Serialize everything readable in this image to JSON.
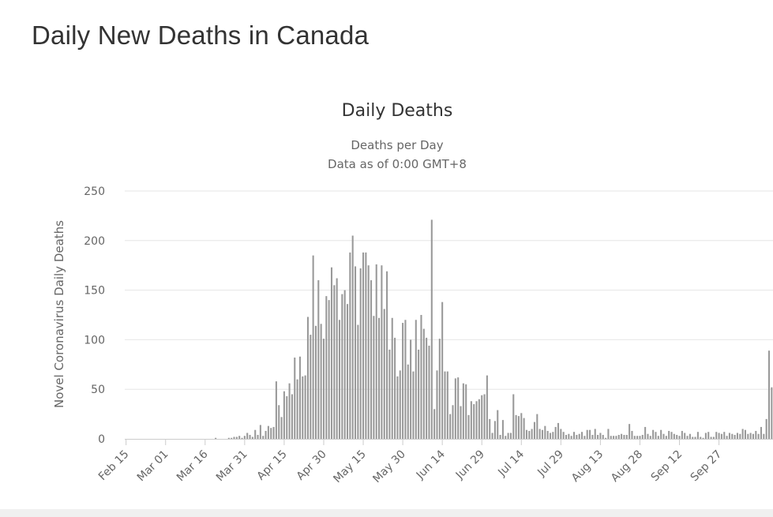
{
  "page": {
    "heading": "Daily New Deaths in Canada"
  },
  "chart_data": {
    "type": "bar",
    "title": "Daily Deaths",
    "subtitle_line1": "Deaths per Day",
    "subtitle_line2": "Data as of 0:00 GMT+8",
    "ylabel": "Novel Coronavirus Daily Deaths",
    "xlabel": "",
    "ylim": [
      0,
      250
    ],
    "yticks": [
      "0",
      "50",
      "100",
      "150",
      "200",
      "250"
    ],
    "grid": true,
    "legend": "none",
    "start_date": "2020-02-15",
    "date_tick_labels": [
      "Feb 15",
      "Mar 01",
      "Mar 16",
      "Mar 31",
      "Apr 15",
      "Apr 30",
      "May 15",
      "May 30",
      "Jun 14",
      "Jun 29",
      "Jul 14",
      "Jul 29",
      "Aug 13",
      "Aug 28",
      "Sep 12",
      "Sep 27"
    ],
    "bar_color": "#999999",
    "series": [
      {
        "values": [
          0,
          0,
          0,
          0,
          0,
          0,
          0,
          0,
          0,
          0,
          0,
          0,
          0,
          0,
          0,
          0,
          0,
          0,
          0,
          0,
          0,
          0,
          0,
          0,
          0,
          0,
          0,
          0,
          0,
          0,
          0,
          0,
          0,
          0,
          1,
          0,
          0,
          0,
          0,
          1,
          1,
          2,
          2,
          3,
          1,
          3,
          6,
          4,
          2,
          9,
          4,
          14,
          3,
          8,
          13,
          11,
          12,
          58,
          34,
          22,
          48,
          43,
          56,
          45,
          82,
          60,
          83,
          63,
          64,
          123,
          105,
          185,
          114,
          160,
          116,
          101,
          144,
          140,
          173,
          155,
          162,
          120,
          146,
          150,
          136,
          188,
          205,
          174,
          115,
          172,
          188,
          188,
          175,
          160,
          124,
          176,
          122,
          175,
          131,
          169,
          90,
          122,
          102,
          63,
          69,
          117,
          120,
          75,
          100,
          68,
          120,
          90,
          125,
          111,
          102,
          94,
          221,
          30,
          69,
          101,
          138,
          68,
          68,
          25,
          34,
          61,
          62,
          33,
          56,
          55,
          24,
          38,
          35,
          38,
          40,
          44,
          45,
          64,
          20,
          6,
          18,
          29,
          4,
          19,
          3,
          6,
          6,
          45,
          24,
          23,
          26,
          21,
          9,
          8,
          10,
          17,
          25,
          10,
          9,
          13,
          8,
          6,
          7,
          12,
          16,
          10,
          7,
          4,
          5,
          3,
          7,
          4,
          5,
          7,
          3,
          9,
          9,
          4,
          10,
          4,
          6,
          4,
          1,
          10,
          3,
          3,
          3,
          4,
          5,
          4,
          4,
          15,
          8,
          3,
          3,
          3,
          4,
          12,
          5,
          3,
          9,
          7,
          3,
          9,
          5,
          3,
          8,
          7,
          5,
          4,
          3,
          8,
          6,
          3,
          5,
          2,
          2,
          7,
          2,
          1,
          6,
          7,
          2,
          2,
          7,
          6,
          5,
          7,
          3,
          6,
          5,
          4,
          6,
          5,
          10,
          9,
          5,
          6,
          5,
          8,
          5,
          12,
          5,
          20,
          89,
          52
        ]
      }
    ]
  }
}
